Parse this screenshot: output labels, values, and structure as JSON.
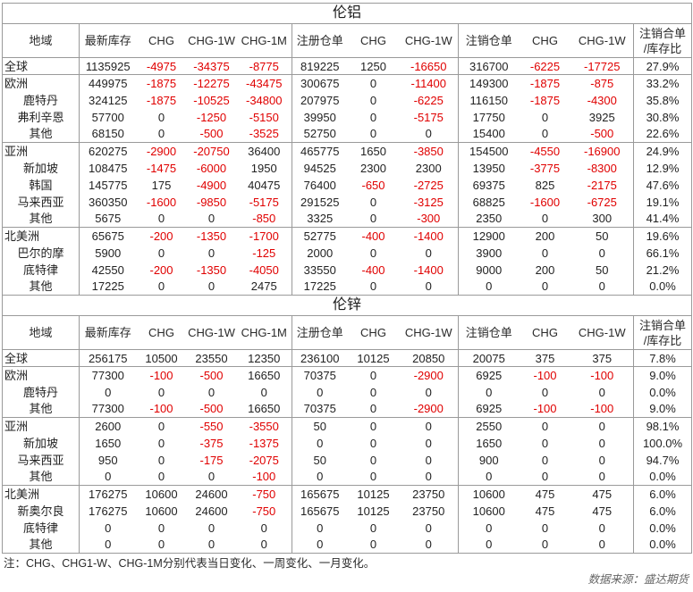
{
  "header": {
    "region": "地域",
    "cols": [
      "最新库存",
      "CHG",
      "CHG-1W",
      "CHG-1M",
      "注册仓单",
      "CHG",
      "CHG-1W",
      "注销仓单",
      "CHG",
      "CHG-1W"
    ],
    "ratio": [
      "注销合单",
      "/库存比"
    ]
  },
  "sections": [
    {
      "title": "伦铝",
      "groups": [
        {
          "region": "全球",
          "values": [
            1135925,
            -4975,
            -34375,
            -8775,
            819225,
            1250,
            -16650,
            316700,
            -6225,
            -17725
          ],
          "ratio": "27.9%",
          "subs": []
        },
        {
          "region": "欧洲",
          "values": [
            449975,
            -1875,
            -12275,
            -43475,
            300675,
            0,
            -11400,
            149300,
            -1875,
            -875
          ],
          "ratio": "33.2%",
          "subs": [
            {
              "name": "鹿特丹",
              "values": [
                324125,
                -1875,
                -10525,
                -34800,
                207975,
                0,
                -6225,
                116150,
                -1875,
                -4300
              ],
              "ratio": "35.8%"
            },
            {
              "name": "弗利辛恩",
              "values": [
                57700,
                0,
                -1250,
                -5150,
                39950,
                0,
                -5175,
                17750,
                0,
                3925
              ],
              "ratio": "30.8%"
            },
            {
              "name": "其他",
              "values": [
                68150,
                0,
                -500,
                -3525,
                52750,
                0,
                0,
                15400,
                0,
                -500
              ],
              "ratio": "22.6%"
            }
          ]
        },
        {
          "region": "亚洲",
          "values": [
            620275,
            -2900,
            -20750,
            36400,
            465775,
            1650,
            -3850,
            154500,
            -4550,
            -16900
          ],
          "ratio": "24.9%",
          "subs": [
            {
              "name": "新加坡",
              "values": [
                108475,
                -1475,
                -6000,
                1950,
                94525,
                2300,
                2300,
                13950,
                -3775,
                -8300
              ],
              "ratio": "12.9%"
            },
            {
              "name": "韩国",
              "values": [
                145775,
                175,
                -4900,
                40475,
                76400,
                -650,
                -2725,
                69375,
                825,
                -2175
              ],
              "ratio": "47.6%"
            },
            {
              "name": "马来西亚",
              "values": [
                360350,
                -1600,
                -9850,
                -5175,
                291525,
                0,
                -3125,
                68825,
                -1600,
                -6725
              ],
              "ratio": "19.1%"
            },
            {
              "name": "其他",
              "values": [
                5675,
                0,
                0,
                -850,
                3325,
                0,
                -300,
                2350,
                0,
                300
              ],
              "ratio": "41.4%"
            }
          ]
        },
        {
          "region": "北美洲",
          "values": [
            65675,
            -200,
            -1350,
            -1700,
            52775,
            -400,
            -1400,
            12900,
            200,
            50
          ],
          "ratio": "19.6%",
          "subs": [
            {
              "name": "巴尔的摩",
              "values": [
                5900,
                0,
                0,
                -125,
                2000,
                0,
                0,
                3900,
                0,
                0
              ],
              "ratio": "66.1%"
            },
            {
              "name": "底特律",
              "values": [
                42550,
                -200,
                -1350,
                -4050,
                33550,
                -400,
                -1400,
                9000,
                200,
                50
              ],
              "ratio": "21.2%"
            },
            {
              "name": "其他",
              "values": [
                17225,
                0,
                0,
                2475,
                17225,
                0,
                0,
                0,
                0,
                0
              ],
              "ratio": "0.0%"
            }
          ]
        }
      ]
    },
    {
      "title": "伦锌",
      "groups": [
        {
          "region": "全球",
          "values": [
            256175,
            10500,
            23550,
            12350,
            236100,
            10125,
            20850,
            20075,
            375,
            375
          ],
          "ratio": "7.8%",
          "subs": []
        },
        {
          "region": "欧洲",
          "values": [
            77300,
            -100,
            -500,
            16650,
            70375,
            0,
            -2900,
            6925,
            -100,
            -100
          ],
          "ratio": "9.0%",
          "subs": [
            {
              "name": "鹿特丹",
              "values": [
                0,
                0,
                0,
                0,
                0,
                0,
                0,
                0,
                0,
                0
              ],
              "ratio": "0.0%"
            },
            {
              "name": "其他",
              "values": [
                77300,
                -100,
                -500,
                16650,
                70375,
                0,
                -2900,
                6925,
                -100,
                -100
              ],
              "ratio": "9.0%"
            }
          ]
        },
        {
          "region": "亚洲",
          "values": [
            2600,
            0,
            -550,
            -3550,
            50,
            0,
            0,
            2550,
            0,
            0
          ],
          "ratio": "98.1%",
          "subs": [
            {
              "name": "新加坡",
              "values": [
                1650,
                0,
                -375,
                -1375,
                0,
                0,
                0,
                1650,
                0,
                0
              ],
              "ratio": "100.0%"
            },
            {
              "name": "马来西亚",
              "values": [
                950,
                0,
                -175,
                -2075,
                50,
                0,
                0,
                900,
                0,
                0
              ],
              "ratio": "94.7%"
            },
            {
              "name": "其他",
              "values": [
                0,
                0,
                0,
                -100,
                0,
                0,
                0,
                0,
                0,
                0
              ],
              "ratio": "0.0%"
            }
          ]
        },
        {
          "region": "北美洲",
          "values": [
            176275,
            10600,
            24600,
            -750,
            165675,
            10125,
            23750,
            10600,
            475,
            475
          ],
          "ratio": "6.0%",
          "subs": [
            {
              "name": "新奥尔良",
              "values": [
                176275,
                10600,
                24600,
                -750,
                165675,
                10125,
                23750,
                10600,
                475,
                475
              ],
              "ratio": "6.0%"
            },
            {
              "name": "底特律",
              "values": [
                0,
                0,
                0,
                0,
                0,
                0,
                0,
                0,
                0,
                0
              ],
              "ratio": "0.0%"
            },
            {
              "name": "其他",
              "values": [
                0,
                0,
                0,
                0,
                0,
                0,
                0,
                0,
                0,
                0
              ],
              "ratio": "0.0%"
            }
          ]
        }
      ]
    }
  ],
  "note": "注：CHG、CHG1-W、CHG-1M分别代表当日变化、一周变化、一月变化。",
  "source": "数据来源：盛达期货",
  "colors": {
    "negative": "#e00000"
  }
}
